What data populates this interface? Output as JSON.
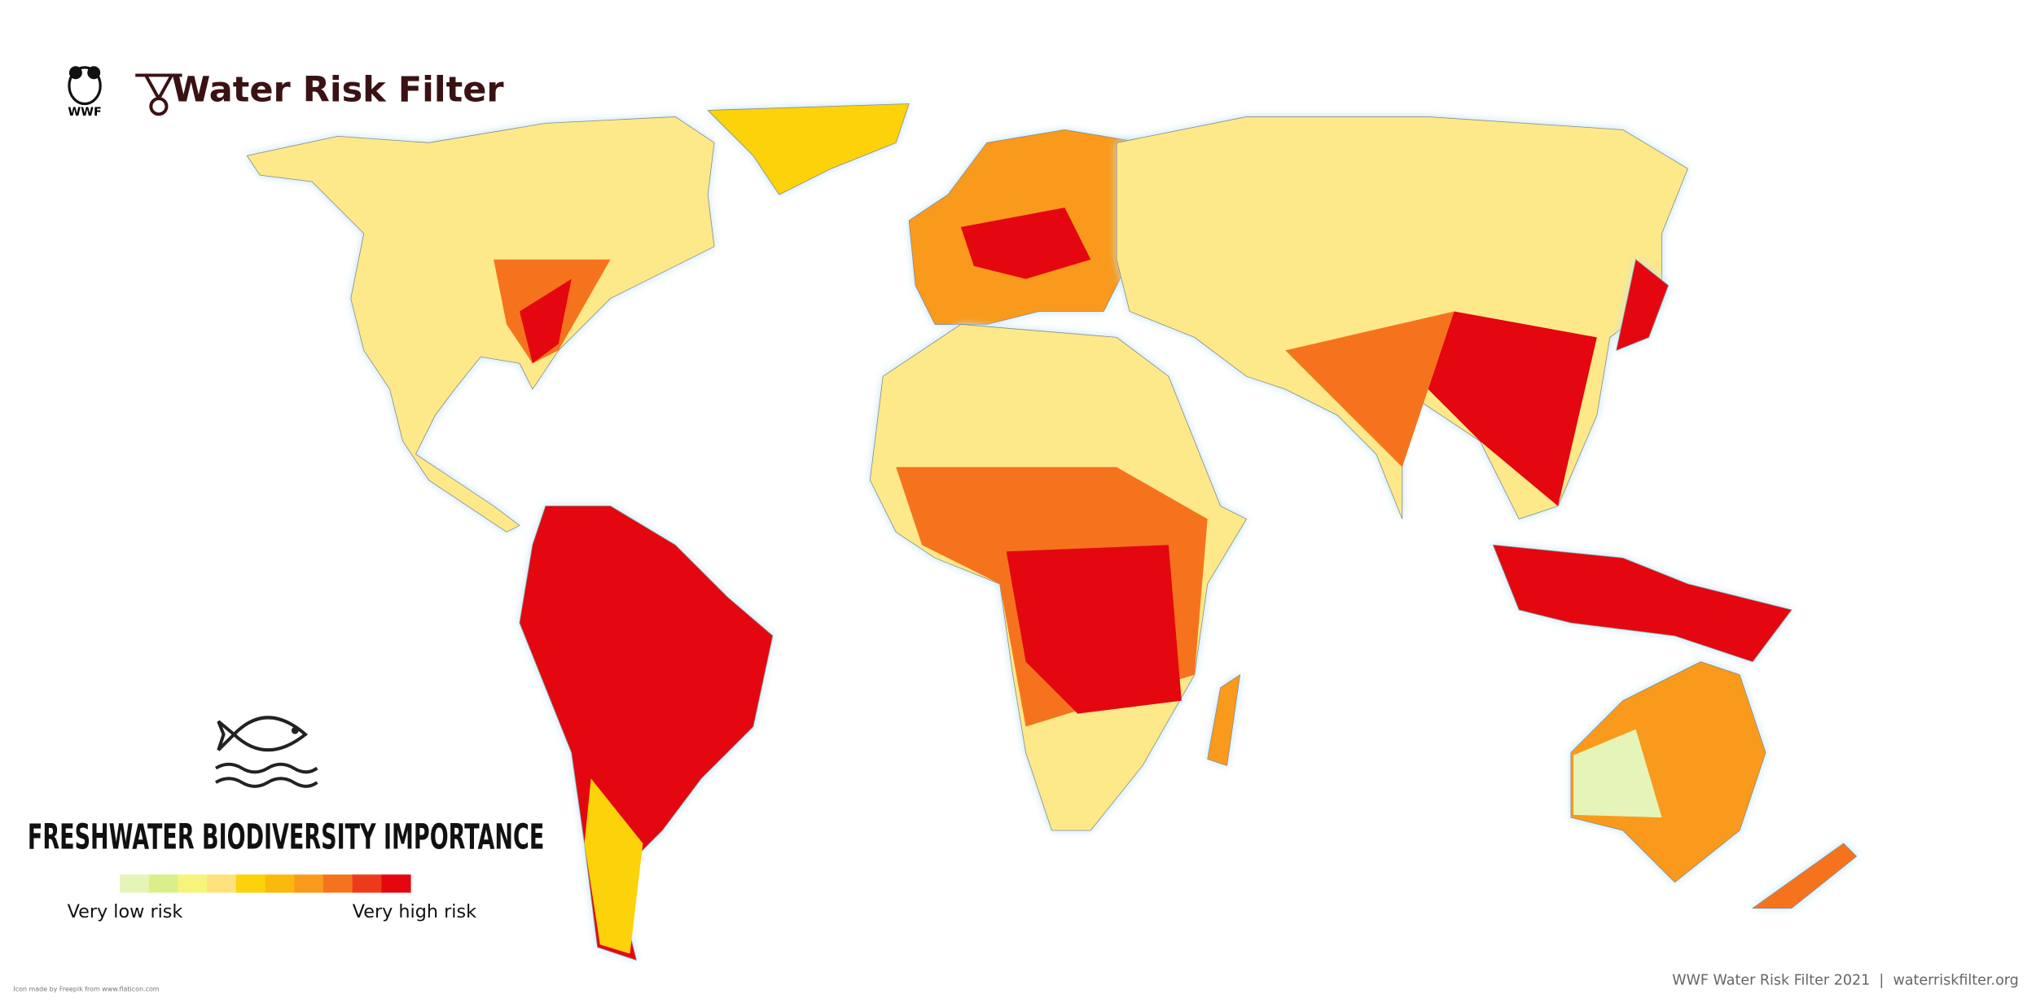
{
  "header": {
    "org": "WWF",
    "title": "Water Risk Filter"
  },
  "legend": {
    "title": "FRESHWATER BIODIVERSITY IMPORTANCE",
    "low_label": "Very low risk",
    "high_label": "Very high risk",
    "colors": [
      "#e5f5b8",
      "#d9f08a",
      "#f6f47a",
      "#fde17a",
      "#fcd20a",
      "#fbb90e",
      "#f99a1c",
      "#f6731e",
      "#ee3a1a",
      "#e4070f"
    ]
  },
  "credit": "Icon made by Freepik from www.flaticon.com",
  "footer": "WWF Water Risk Filter 2021  |  waterriskfilter.org"
}
